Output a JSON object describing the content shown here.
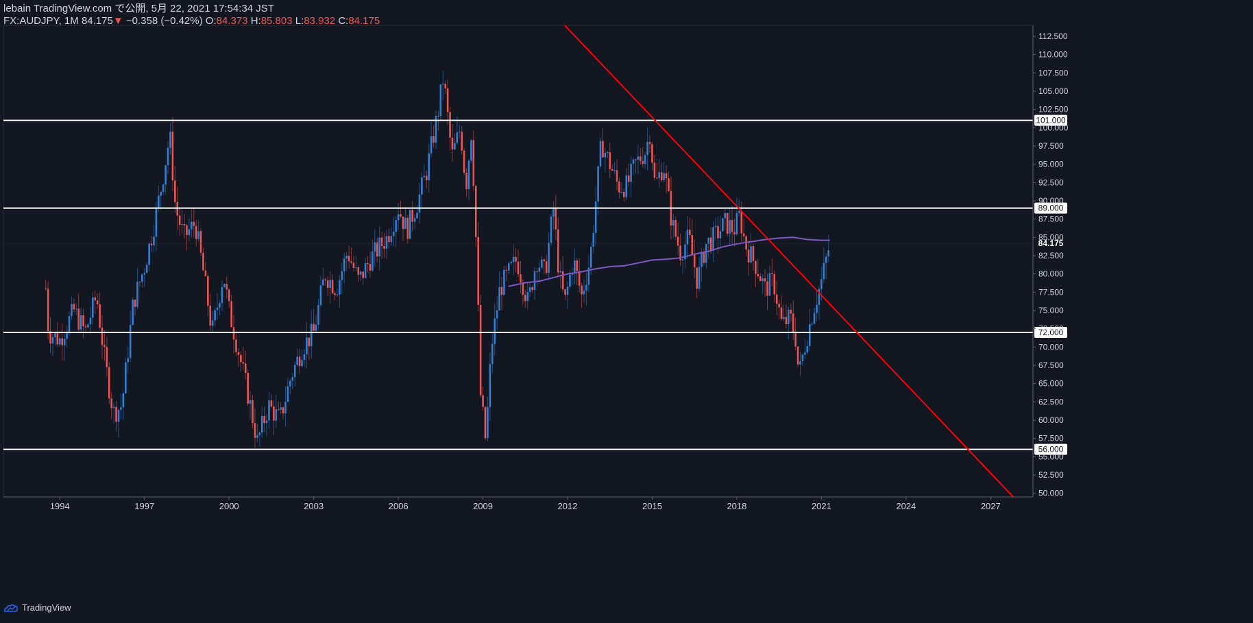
{
  "header": {
    "publisher_line": "lebain TradingView.com で公開, 5月 22, 2021 17:54:34 JST",
    "symbol": "FX:AUDJPY, 1M",
    "last": "84.175",
    "change": "−0.358 (−0.42%)",
    "o_label": "O:",
    "o_value": "84.373",
    "h_label": "H:",
    "h_value": "85.803",
    "l_label": "L:",
    "l_value": "83.932",
    "c_label": "C:",
    "c_value": "84.175"
  },
  "footer": {
    "brand": "TradingView"
  },
  "colors": {
    "background": "#131722",
    "up": "#2f7fd6",
    "down": "#ef5350",
    "trendline": "#ff0000",
    "ma": "#7e57c2",
    "hline": "#ffffff",
    "axis_text": "#d1d4dc"
  },
  "icons": {
    "logo": "tradingview-cloud-icon",
    "change_arrow": "triangle-down-icon"
  },
  "chart_data": {
    "type": "candlestick",
    "symbol": "FX:AUDJPY",
    "interval": "1M",
    "ylim": [
      49.5,
      114
    ],
    "xlim": [
      1992.0,
      2028.5
    ],
    "y_ticks": [
      "50.000",
      "52.500",
      "55.000",
      "57.500",
      "60.000",
      "62.500",
      "65.000",
      "67.500",
      "70.000",
      "72.500",
      "75.000",
      "77.500",
      "80.000",
      "82.500",
      "85.000",
      "87.500",
      "90.000",
      "92.500",
      "95.000",
      "97.500",
      "100.000",
      "102.500",
      "105.000",
      "107.500",
      "110.000",
      "112.500"
    ],
    "x_ticks": [
      "1994",
      "1997",
      "2000",
      "2003",
      "2006",
      "2009",
      "2012",
      "2015",
      "2018",
      "2021",
      "2024",
      "2027"
    ],
    "horizontal_lines": [
      {
        "price": 101.0,
        "label": "101.000"
      },
      {
        "price": 89.0,
        "label": "89.000"
      },
      {
        "price": 72.0,
        "label": "72.000"
      },
      {
        "price": 56.0,
        "label": "56.000"
      }
    ],
    "last_price_label": "84.175",
    "trendline": {
      "start": [
        2011.9,
        114
      ],
      "end": [
        2027.8,
        49.5
      ]
    },
    "price_path": [
      [
        1993.5,
        78
      ],
      [
        1993.6,
        72
      ],
      [
        1994.0,
        71
      ],
      [
        1994.5,
        75
      ],
      [
        1994.9,
        72
      ],
      [
        1995.3,
        77
      ],
      [
        1995.6,
        68
      ],
      [
        1995.9,
        61
      ],
      [
        1996.2,
        62
      ],
      [
        1996.6,
        76
      ],
      [
        1997.0,
        81
      ],
      [
        1997.3,
        86
      ],
      [
        1997.6,
        92
      ],
      [
        1997.9,
        99
      ],
      [
        1998.1,
        89
      ],
      [
        1998.4,
        85
      ],
      [
        1998.8,
        87
      ],
      [
        1999.1,
        80
      ],
      [
        1999.4,
        72
      ],
      [
        1999.8,
        80
      ],
      [
        2000.0,
        75
      ],
      [
        2000.3,
        70
      ],
      [
        2000.7,
        63
      ],
      [
        2001.0,
        57
      ],
      [
        2001.4,
        62
      ],
      [
        2001.8,
        60
      ],
      [
        2002.2,
        66
      ],
      [
        2002.6,
        70
      ],
      [
        2003.0,
        72
      ],
      [
        2003.4,
        80
      ],
      [
        2003.8,
        78
      ],
      [
        2004.2,
        83
      ],
      [
        2004.6,
        79
      ],
      [
        2005.0,
        82
      ],
      [
        2005.6,
        85
      ],
      [
        2006.0,
        89
      ],
      [
        2006.3,
        86
      ],
      [
        2006.7,
        90
      ],
      [
        2007.0,
        94
      ],
      [
        2007.4,
        102
      ],
      [
        2007.6,
        107
      ],
      [
        2007.9,
        96
      ],
      [
        2008.2,
        100
      ],
      [
        2008.4,
        92
      ],
      [
        2008.6,
        100
      ],
      [
        2008.8,
        80
      ],
      [
        2008.9,
        64
      ],
      [
        2009.1,
        57
      ],
      [
        2009.3,
        70
      ],
      [
        2009.6,
        78
      ],
      [
        2009.9,
        80
      ],
      [
        2010.2,
        82
      ],
      [
        2010.6,
        76
      ],
      [
        2010.9,
        82
      ],
      [
        2011.2,
        80
      ],
      [
        2011.5,
        89
      ],
      [
        2011.7,
        80
      ],
      [
        2011.9,
        76
      ],
      [
        2012.2,
        82
      ],
      [
        2012.5,
        77
      ],
      [
        2012.8,
        82
      ],
      [
        2013.0,
        90
      ],
      [
        2013.2,
        98
      ],
      [
        2013.5,
        95
      ],
      [
        2013.8,
        92
      ],
      [
        2014.1,
        92
      ],
      [
        2014.4,
        95
      ],
      [
        2014.8,
        97
      ],
      [
        2014.9,
        100
      ],
      [
        2015.1,
        92
      ],
      [
        2015.4,
        95
      ],
      [
        2015.7,
        87
      ],
      [
        2016.0,
        83
      ],
      [
        2016.3,
        85
      ],
      [
        2016.6,
        79
      ],
      [
        2016.9,
        84
      ],
      [
        2017.2,
        85
      ],
      [
        2017.6,
        87
      ],
      [
        2017.9,
        86
      ],
      [
        2018.1,
        88
      ],
      [
        2018.3,
        84
      ],
      [
        2018.7,
        81
      ],
      [
        2019.0,
        78
      ],
      [
        2019.3,
        79
      ],
      [
        2019.6,
        73
      ],
      [
        2019.9,
        74
      ],
      [
        2020.1,
        71
      ],
      [
        2020.2,
        66
      ],
      [
        2020.4,
        70
      ],
      [
        2020.7,
        75
      ],
      [
        2021.0,
        79
      ],
      [
        2021.3,
        84.2
      ]
    ],
    "moving_average": [
      [
        2009.9,
        78.3
      ],
      [
        2010.5,
        78.8
      ],
      [
        2011.0,
        79.0
      ],
      [
        2011.5,
        79.5
      ],
      [
        2012.0,
        80.0
      ],
      [
        2012.5,
        80.3
      ],
      [
        2013.0,
        80.7
      ],
      [
        2013.5,
        81.0
      ],
      [
        2014.0,
        81.1
      ],
      [
        2014.5,
        81.5
      ],
      [
        2015.0,
        81.9
      ],
      [
        2015.5,
        82.0
      ],
      [
        2016.0,
        82.2
      ],
      [
        2016.5,
        82.7
      ],
      [
        2017.0,
        83.1
      ],
      [
        2017.5,
        83.7
      ],
      [
        2018.0,
        84.1
      ],
      [
        2018.5,
        84.4
      ],
      [
        2019.0,
        84.7
      ],
      [
        2019.5,
        84.9
      ],
      [
        2020.0,
        85.0
      ],
      [
        2020.5,
        84.7
      ],
      [
        2021.0,
        84.6
      ],
      [
        2021.3,
        84.6
      ]
    ]
  }
}
